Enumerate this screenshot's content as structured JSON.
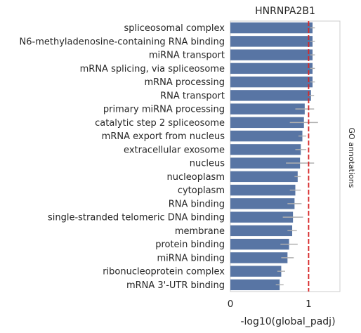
{
  "chart_data": {
    "type": "bar",
    "orientation": "horizontal",
    "title": "HNRNPA2B1",
    "xlabel": "-log10(global_padj)",
    "side_label": "GO annotations",
    "xlim": [
      0,
      1.4
    ],
    "xticks": [
      {
        "value": 0,
        "label": "0"
      },
      {
        "value": 1,
        "label": "1"
      }
    ],
    "reference_line": 1,
    "categories": [
      "spliceosomal complex",
      "N6-methyladenosine-containing RNA binding",
      "miRNA transport",
      "mRNA splicing, via spliceosome",
      "mRNA processing",
      "RNA transport",
      "primary miRNA processing",
      "catalytic step 2 spliceosome",
      "mRNA export from nucleus",
      "extracellular exosome",
      "nucleus",
      "nucleoplasm",
      "cytoplasm",
      "RNA binding",
      "single-stranded telomeric DNA binding",
      "membrane",
      "protein binding",
      "miRNA binding",
      "ribonucleoprotein complex",
      "mRNA 3'-UTR binding"
    ],
    "values": [
      1.05,
      1.05,
      1.05,
      1.05,
      1.05,
      1.03,
      0.95,
      0.94,
      0.92,
      0.9,
      0.89,
      0.86,
      0.83,
      0.82,
      0.8,
      0.79,
      0.75,
      0.73,
      0.65,
      0.63
    ],
    "errors": [
      0.03,
      0.03,
      0.03,
      0.03,
      0.03,
      0.04,
      0.12,
      0.18,
      0.05,
      0.07,
      0.18,
      0.04,
      0.07,
      0.09,
      0.13,
      0.06,
      0.11,
      0.08,
      0.05,
      0.05
    ],
    "grid": false,
    "colors": {
      "bar": "#5875a4",
      "error": "#b0b0b0",
      "reference": "#d62728",
      "frame": "#cccccc",
      "text": "#262626"
    }
  }
}
